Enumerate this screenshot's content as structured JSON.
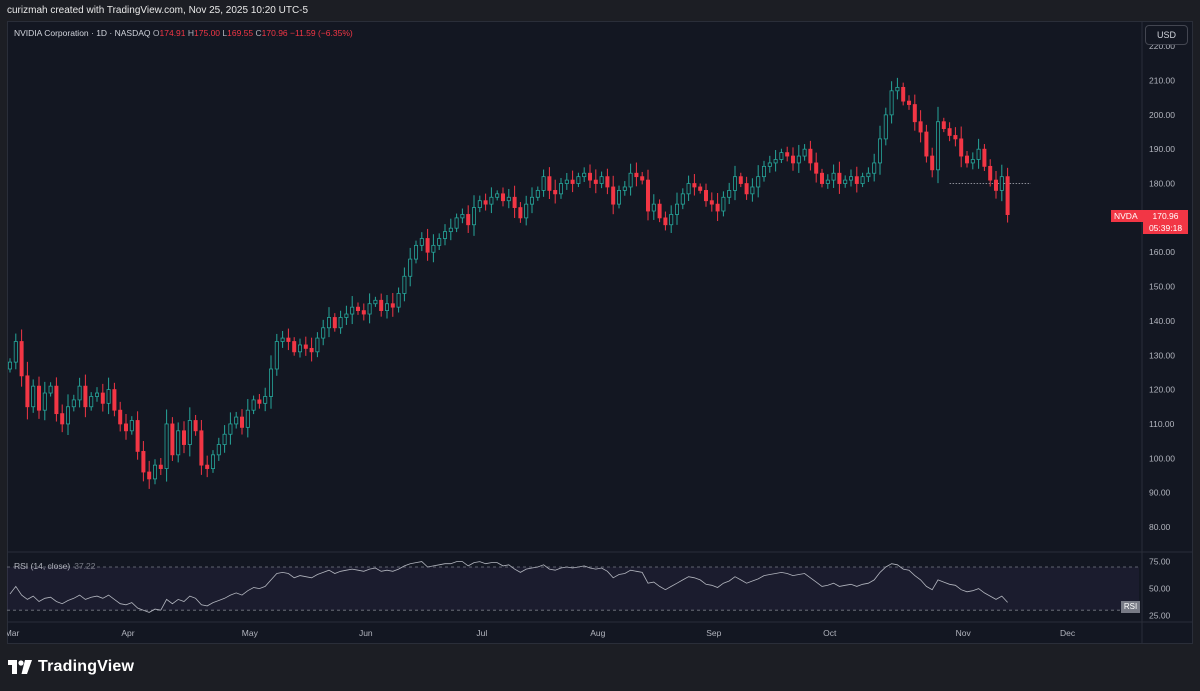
{
  "header": {
    "credit": "curizmah created with TradingView.com, Nov 25, 2025 10:20 UTC-5"
  },
  "legend": {
    "symbol": "NVIDIA Corporation · 1D · NASDAQ",
    "o_label": "O",
    "o_value": "174.91",
    "h_label": "H",
    "h_value": "175.00",
    "l_label": "L",
    "l_value": "169.55",
    "c_label": "C",
    "c_value": "170.96",
    "change": "−11.59 (−6.35%)"
  },
  "currency_button": "USD",
  "price_label": {
    "ticker": "NVDA",
    "price": "170.96",
    "countdown": "05:39:18"
  },
  "rsi": {
    "label": "RSI (14, close)",
    "value": "37.22",
    "badge": "RSI"
  },
  "brand": {
    "name": "TradingView",
    "logo_icon": "tradingview-logo-icon"
  },
  "colors": {
    "up": "#26a69a",
    "down": "#f23645",
    "background": "#131722",
    "rsi_line": "#b2b5be"
  },
  "chart_data": [
    {
      "type": "candlestick",
      "title": "NVIDIA Corporation · 1D · NASDAQ",
      "ylim": [
        73,
        225
      ],
      "y_ticks": [
        80,
        90,
        100,
        110,
        120,
        130,
        140,
        150,
        160,
        170,
        180,
        190,
        200,
        210,
        220
      ],
      "y_tick_labels": [
        "80.00",
        "90.00",
        "100.00",
        "110.00",
        "120.00",
        "130.00",
        "140.00",
        "150.00",
        "160.00",
        "170.00",
        "180.00",
        "190.00",
        "200.00",
        "210.00",
        "220.00"
      ],
      "x_tick_labels": [
        "Mar",
        "Apr",
        "May",
        "Jun",
        "Jul",
        "Aug",
        "Sep",
        "Oct",
        "Nov",
        "Dec"
      ],
      "x_tick_indices": [
        0,
        20,
        41,
        61,
        81,
        101,
        121,
        141,
        164,
        182
      ],
      "series": [
        {
          "close": [
            128,
            134,
            124,
            115,
            121,
            114,
            119,
            121,
            113,
            110,
            115,
            117,
            121,
            115,
            118,
            119,
            116,
            120,
            114,
            110,
            108,
            111,
            102,
            96,
            94,
            98,
            97,
            110,
            101,
            108,
            104,
            111,
            108,
            98,
            97,
            101,
            104,
            107,
            110,
            112,
            109,
            114,
            117,
            116,
            118,
            126,
            134,
            135,
            134,
            131,
            133,
            132,
            131,
            135,
            138,
            141,
            138,
            141,
            142,
            144,
            143,
            142,
            145,
            146,
            143,
            145,
            144,
            148,
            153,
            158,
            162,
            164,
            160,
            162,
            164,
            166,
            167,
            170,
            171,
            168,
            173,
            175,
            174,
            176,
            177,
            175,
            176,
            173,
            170,
            174,
            176,
            178,
            182,
            178,
            177,
            180,
            181,
            180,
            182,
            183,
            181,
            180,
            182,
            179,
            174,
            178,
            179,
            183,
            182,
            181,
            172,
            174,
            170,
            168,
            171,
            174,
            177,
            180,
            179,
            178,
            175,
            174,
            172,
            176,
            178,
            182,
            180,
            177,
            179,
            182,
            185,
            186,
            187,
            189,
            188,
            186,
            188,
            190,
            186,
            183,
            180,
            181,
            183,
            180,
            181,
            182,
            180,
            182,
            183,
            186,
            193,
            200,
            207,
            208,
            204,
            203,
            198,
            195,
            188,
            184,
            198,
            196,
            194,
            193,
            188,
            186,
            187,
            190,
            185,
            181,
            178,
            182,
            170.96
          ],
          "ma_line": 180
        }
      ]
    },
    {
      "type": "line",
      "title": "RSI (14, close)",
      "ylim": [
        20,
        82
      ],
      "y_ticks": [
        25,
        50,
        75
      ],
      "y_tick_labels": [
        "25.00",
        "50.00",
        "75.00"
      ],
      "band": [
        30,
        70
      ],
      "series": [
        {
          "name": "RSI",
          "values": [
            45,
            52,
            44,
            40,
            43,
            38,
            41,
            42,
            38,
            36,
            39,
            41,
            44,
            40,
            42,
            43,
            41,
            44,
            40,
            36,
            35,
            37,
            32,
            30,
            28,
            31,
            30,
            40,
            36,
            40,
            38,
            43,
            41,
            35,
            34,
            37,
            39,
            41,
            44,
            46,
            44,
            48,
            51,
            50,
            52,
            58,
            64,
            65,
            64,
            60,
            62,
            61,
            60,
            63,
            65,
            67,
            64,
            66,
            67,
            68,
            67,
            66,
            68,
            69,
            66,
            67,
            66,
            68,
            71,
            73,
            74,
            75,
            70,
            71,
            72,
            73,
            73,
            75,
            75,
            71,
            74,
            75,
            73,
            74,
            74,
            71,
            72,
            68,
            65,
            68,
            69,
            70,
            72,
            68,
            67,
            69,
            70,
            69,
            70,
            71,
            69,
            68,
            69,
            66,
            60,
            63,
            64,
            67,
            66,
            65,
            55,
            56,
            52,
            49,
            52,
            55,
            58,
            61,
            60,
            58,
            54,
            53,
            51,
            55,
            57,
            61,
            58,
            55,
            57,
            59,
            62,
            63,
            64,
            65,
            64,
            62,
            63,
            64,
            60,
            56,
            52,
            53,
            55,
            52,
            53,
            54,
            52,
            54,
            55,
            58,
            65,
            70,
            73,
            72,
            68,
            67,
            62,
            58,
            52,
            49,
            58,
            56,
            54,
            53,
            49,
            47,
            48,
            50,
            46,
            43,
            40,
            43,
            37.22
          ]
        }
      ]
    }
  ]
}
